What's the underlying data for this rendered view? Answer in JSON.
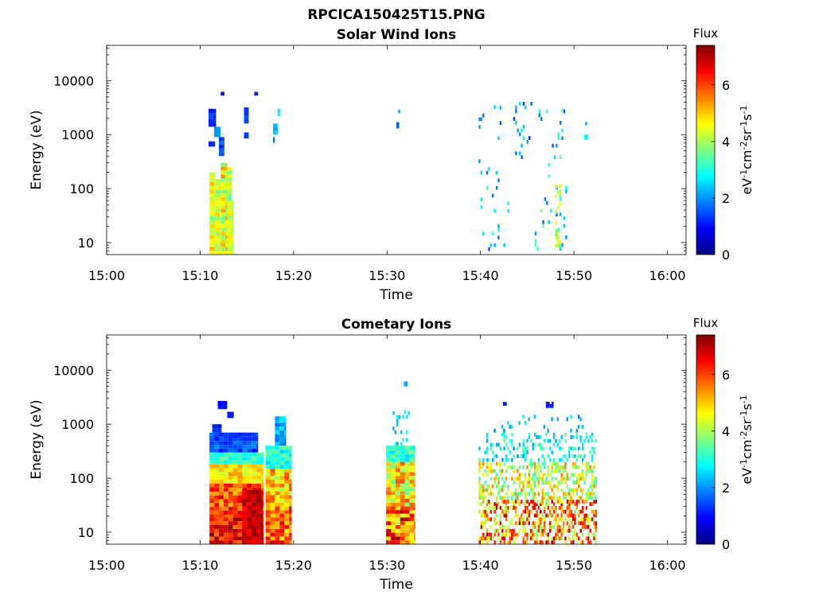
{
  "figure_title": "RPCICA150425T15.PNG",
  "colormap": [
    "#00007f",
    "#0000ff",
    "#007fff",
    "#00ffff",
    "#7fff7f",
    "#ffff00",
    "#ff7f00",
    "#ff0000",
    "#7f0000"
  ],
  "chart_data": [
    {
      "type": "heatmap",
      "title": "Solar Wind Ions",
      "xlabel": "Time",
      "ylabel": "Energy (eV)",
      "x_ticks": [
        "15:00",
        "15:10",
        "15:20",
        "15:30",
        "15:40",
        "15:50",
        "16:00"
      ],
      "x_range_minutes": [
        0,
        62
      ],
      "y_scale": "log",
      "y_ticks": [
        "10",
        "100",
        "1000",
        "10000"
      ],
      "y_range_eV": [
        6,
        45000
      ],
      "colorbar": {
        "title": "Flux",
        "label": "eV-1cm-2sr-1s-1",
        "ticks": [
          "0",
          "2",
          "4",
          "6"
        ],
        "range": [
          0,
          7.4
        ]
      },
      "blocks": [
        {
          "t": [
            11.0,
            11.6
          ],
          "e": [
            6,
            200
          ],
          "v": [
            3.6,
            5.2
          ]
        },
        {
          "t": [
            11.6,
            12.2
          ],
          "e": [
            6,
            150
          ],
          "v": [
            3.8,
            5.0
          ]
        },
        {
          "t": [
            12.2,
            12.9
          ],
          "e": [
            6,
            300
          ],
          "v": [
            3.4,
            5.4
          ]
        },
        {
          "t": [
            12.9,
            13.4
          ],
          "e": [
            6,
            250
          ],
          "v": [
            3.6,
            5.0
          ]
        },
        {
          "t": [
            13.4,
            13.6
          ],
          "e": [
            6,
            60
          ],
          "v": [
            3.8,
            4.6
          ]
        },
        {
          "t": [
            10.9,
            11.7
          ],
          "e": [
            1400,
            3000
          ],
          "v": [
            0.9,
            1.5
          ]
        },
        {
          "t": [
            11.5,
            12.2
          ],
          "e": [
            900,
            1400
          ],
          "v": [
            1.8,
            2.2
          ]
        },
        {
          "t": [
            10.9,
            11.6
          ],
          "e": [
            600,
            750
          ],
          "v": [
            1.0,
            1.3
          ]
        },
        {
          "t": [
            12.0,
            12.6
          ],
          "e": [
            400,
            900
          ],
          "v": [
            1.2,
            1.8
          ]
        },
        {
          "t": [
            12.2,
            12.6
          ],
          "e": [
            5600,
            6200
          ],
          "v": [
            0.9,
            1.1
          ]
        },
        {
          "t": [
            14.7,
            15.2
          ],
          "e": [
            1600,
            3200
          ],
          "v": [
            1.1,
            1.6
          ]
        },
        {
          "t": [
            14.7,
            15.2
          ],
          "e": [
            850,
            1100
          ],
          "v": [
            1.0,
            1.4
          ]
        },
        {
          "t": [
            15.8,
            16.2
          ],
          "e": [
            5600,
            6200
          ],
          "v": [
            1.0,
            1.2
          ]
        },
        {
          "t": [
            17.8,
            18.3
          ],
          "e": [
            1000,
            1600
          ],
          "v": [
            2.0,
            2.8
          ]
        },
        {
          "t": [
            18.3,
            18.6
          ],
          "e": [
            2200,
            3000
          ],
          "v": [
            2.6,
            3.0
          ]
        },
        {
          "t": [
            17.8,
            18.0
          ],
          "e": [
            700,
            900
          ],
          "v": [
            1.6,
            2.0
          ]
        },
        {
          "t": [
            31.0,
            31.3
          ],
          "e": [
            1300,
            1700
          ],
          "v": [
            1.4,
            1.8
          ]
        },
        {
          "t": [
            31.2,
            31.4
          ],
          "e": [
            2500,
            2900
          ],
          "v": [
            2.0,
            2.2
          ]
        },
        {
          "t": [
            51.1,
            51.5
          ],
          "e": [
            800,
            1000
          ],
          "v": [
            2.4,
            3.0
          ]
        }
      ],
      "scatter_regions": [
        {
          "t": [
            39.8,
            43.2
          ],
          "e": [
            7,
            3500
          ],
          "v": [
            1.5,
            3.2
          ],
          "density": 0.05,
          "seed": 11
        },
        {
          "t": [
            43.5,
            45.5
          ],
          "e": [
            300,
            4500
          ],
          "v": [
            1.2,
            2.8
          ],
          "density": 0.12,
          "seed": 21
        },
        {
          "t": [
            45.8,
            49.2
          ],
          "e": [
            6,
            3000
          ],
          "v": [
            1.5,
            3.6
          ],
          "density": 0.07,
          "seed": 31
        },
        {
          "t": [
            48.0,
            48.6
          ],
          "e": [
            8,
            120
          ],
          "v": [
            3.2,
            4.8
          ],
          "density": 0.45,
          "seed": 41
        },
        {
          "t": [
            50.8,
            51.6
          ],
          "e": [
            900,
            2500
          ],
          "v": [
            1.6,
            2.6
          ],
          "density": 0.12,
          "seed": 51
        }
      ]
    },
    {
      "type": "heatmap",
      "title": "Cometary Ions",
      "xlabel": "Time",
      "ylabel": "Energy (eV)",
      "x_ticks": [
        "15:00",
        "15:10",
        "15:20",
        "15:30",
        "15:40",
        "15:50",
        "16:00"
      ],
      "x_range_minutes": [
        0,
        62
      ],
      "y_scale": "log",
      "y_ticks": [
        "10",
        "100",
        "1000",
        "10000"
      ],
      "y_range_eV": [
        6,
        45000
      ],
      "colorbar": {
        "title": "Flux",
        "label": "eV-1cm-2sr-1s-1",
        "ticks": [
          "0",
          "2",
          "4",
          "6"
        ],
        "range": [
          0,
          7.4
        ]
      },
      "blocks": [
        {
          "t": [
            11.0,
            16.8
          ],
          "e": [
            6,
            25
          ],
          "v": [
            5.6,
            7.4
          ]
        },
        {
          "t": [
            11.0,
            16.8
          ],
          "e": [
            25,
            80
          ],
          "v": [
            5.0,
            6.8
          ]
        },
        {
          "t": [
            11.0,
            16.8
          ],
          "e": [
            80,
            180
          ],
          "v": [
            4.2,
            5.4
          ]
        },
        {
          "t": [
            11.0,
            16.8
          ],
          "e": [
            180,
            300
          ],
          "v": [
            2.6,
            3.6
          ]
        },
        {
          "t": [
            14.5,
            16.7
          ],
          "e": [
            6,
            60
          ],
          "v": [
            6.4,
            7.4
          ]
        },
        {
          "t": [
            11.0,
            16.2
          ],
          "e": [
            300,
            700
          ],
          "v": [
            1.0,
            2.0
          ]
        },
        {
          "t": [
            11.9,
            12.9
          ],
          "e": [
            1900,
            2700
          ],
          "v": [
            0.9,
            1.2
          ]
        },
        {
          "t": [
            12.9,
            13.6
          ],
          "e": [
            1300,
            1700
          ],
          "v": [
            0.9,
            1.2
          ]
        },
        {
          "t": [
            11.3,
            12.3
          ],
          "e": [
            700,
            1000
          ],
          "v": [
            1.0,
            1.4
          ]
        },
        {
          "t": [
            17.0,
            19.8
          ],
          "e": [
            6,
            30
          ],
          "v": [
            4.6,
            6.8
          ]
        },
        {
          "t": [
            17.0,
            19.8
          ],
          "e": [
            30,
            150
          ],
          "v": [
            3.8,
            6.0
          ]
        },
        {
          "t": [
            17.0,
            19.8
          ],
          "e": [
            150,
            400
          ],
          "v": [
            2.4,
            3.6
          ]
        },
        {
          "t": [
            18.0,
            19.2
          ],
          "e": [
            400,
            1400
          ],
          "v": [
            1.6,
            2.8
          ]
        },
        {
          "t": [
            29.9,
            33.0
          ],
          "e": [
            6,
            30
          ],
          "v": [
            4.2,
            7.2
          ]
        },
        {
          "t": [
            29.9,
            33.0
          ],
          "e": [
            30,
            200
          ],
          "v": [
            3.4,
            6.0
          ]
        },
        {
          "t": [
            29.9,
            33.0
          ],
          "e": [
            200,
            400
          ],
          "v": [
            2.4,
            3.8
          ]
        }
      ],
      "scatter_regions": [
        {
          "t": [
            30.6,
            32.4
          ],
          "e": [
            400,
            1800
          ],
          "v": [
            1.8,
            3.0
          ],
          "density": 0.25,
          "seed": 61
        },
        {
          "t": [
            31.8,
            32.2
          ],
          "e": [
            5000,
            6200
          ],
          "v": [
            2.0,
            2.2
          ],
          "density": 1.0,
          "seed": 62
        },
        {
          "t": [
            39.8,
            52.4
          ],
          "e": [
            6,
            40
          ],
          "v": [
            3.6,
            7.2
          ],
          "density": 0.55,
          "seed": 71
        },
        {
          "t": [
            39.8,
            52.4
          ],
          "e": [
            40,
            200
          ],
          "v": [
            3.0,
            5.6
          ],
          "density": 0.5,
          "seed": 72
        },
        {
          "t": [
            39.8,
            52.4
          ],
          "e": [
            200,
            700
          ],
          "v": [
            2.0,
            3.6
          ],
          "density": 0.28,
          "seed": 73
        },
        {
          "t": [
            40.8,
            52.0
          ],
          "e": [
            700,
            1500
          ],
          "v": [
            1.8,
            2.8
          ],
          "density": 0.08,
          "seed": 74
        },
        {
          "t": [
            47.0,
            47.7
          ],
          "e": [
            2000,
            2600
          ],
          "v": [
            0.9,
            1.2
          ],
          "density": 0.7,
          "seed": 75
        },
        {
          "t": [
            42.4,
            42.7
          ],
          "e": [
            2200,
            2600
          ],
          "v": [
            1.0,
            1.2
          ],
          "density": 1.0,
          "seed": 76
        }
      ]
    }
  ]
}
